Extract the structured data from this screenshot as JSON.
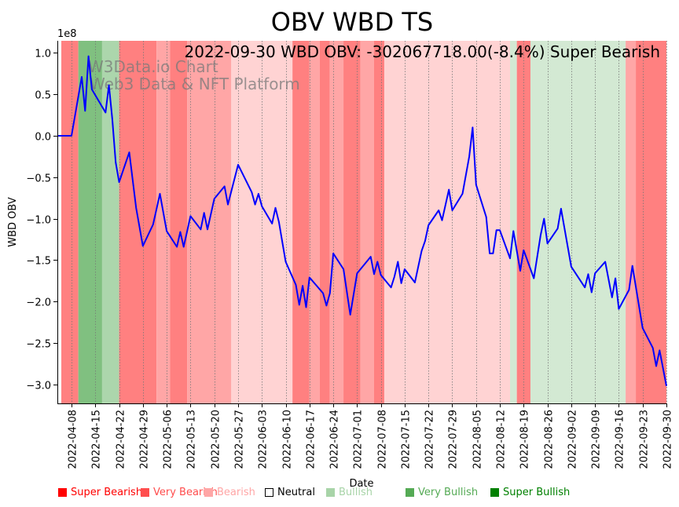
{
  "chart_data": {
    "type": "line",
    "title": "OBV WBD TS",
    "annotation": "2022-09-30 WBD OBV: -302067718.00(-8.4%) Super Bearish",
    "watermark": [
      "W3Data.io Chart",
      "Web3 Data & NFT Platform"
    ],
    "xlabel": "Date",
    "ylabel": "WBD OBV",
    "y_scale_label": "1e8",
    "y_unit_multiplier": 100000000,
    "xlim": [
      "2022-04-04",
      "2022-09-30"
    ],
    "ylim": [
      -3.23,
      1.146
    ],
    "grid": "vertical dotted at x ticks",
    "x_ticks": [
      "2022-04-08",
      "2022-04-15",
      "2022-04-22",
      "2022-04-29",
      "2022-05-06",
      "2022-05-13",
      "2022-05-20",
      "2022-05-27",
      "2022-06-03",
      "2022-06-10",
      "2022-06-17",
      "2022-06-24",
      "2022-07-01",
      "2022-07-08",
      "2022-07-15",
      "2022-07-22",
      "2022-07-29",
      "2022-08-05",
      "2022-08-12",
      "2022-08-19",
      "2022-08-26",
      "2022-09-02",
      "2022-09-09",
      "2022-09-16",
      "2022-09-23",
      "2022-09-30"
    ],
    "y_ticks": [
      1.0,
      0.5,
      0.0,
      -0.5,
      -1.0,
      -1.5,
      -2.0,
      -2.5,
      -3.0
    ],
    "y_tick_labels": [
      "1.0",
      "0.5",
      "0.0",
      "−0.5",
      "−1.0",
      "−1.5",
      "−2.0",
      "−2.5",
      "−3.0"
    ],
    "series": [
      {
        "name": "OBV",
        "color": "#0000ff",
        "points": [
          [
            "2022-04-04",
            0.0
          ],
          [
            "2022-04-08",
            0.0
          ],
          [
            "2022-04-11",
            0.71
          ],
          [
            "2022-04-12",
            0.3
          ],
          [
            "2022-04-13",
            0.96
          ],
          [
            "2022-04-14",
            0.56
          ],
          [
            "2022-04-18",
            0.28
          ],
          [
            "2022-04-19",
            0.61
          ],
          [
            "2022-04-20",
            0.2
          ],
          [
            "2022-04-21",
            -0.32
          ],
          [
            "2022-04-22",
            -0.56
          ],
          [
            "2022-04-25",
            -0.2
          ],
          [
            "2022-04-27",
            -0.87
          ],
          [
            "2022-04-29",
            -1.33
          ],
          [
            "2022-05-02",
            -1.07
          ],
          [
            "2022-05-04",
            -0.7
          ],
          [
            "2022-05-06",
            -1.15
          ],
          [
            "2022-05-09",
            -1.34
          ],
          [
            "2022-05-10",
            -1.16
          ],
          [
            "2022-05-11",
            -1.34
          ],
          [
            "2022-05-13",
            -0.97
          ],
          [
            "2022-05-16",
            -1.13
          ],
          [
            "2022-05-17",
            -0.93
          ],
          [
            "2022-05-18",
            -1.13
          ],
          [
            "2022-05-20",
            -0.76
          ],
          [
            "2022-05-23",
            -0.61
          ],
          [
            "2022-05-24",
            -0.83
          ],
          [
            "2022-05-27",
            -0.35
          ],
          [
            "2022-05-31",
            -0.68
          ],
          [
            "2022-06-01",
            -0.83
          ],
          [
            "2022-06-02",
            -0.7
          ],
          [
            "2022-06-03",
            -0.85
          ],
          [
            "2022-06-06",
            -1.06
          ],
          [
            "2022-06-07",
            -0.87
          ],
          [
            "2022-06-08",
            -1.04
          ],
          [
            "2022-06-10",
            -1.52
          ],
          [
            "2022-06-13",
            -1.8
          ],
          [
            "2022-06-14",
            -2.04
          ],
          [
            "2022-06-15",
            -1.81
          ],
          [
            "2022-06-16",
            -2.07
          ],
          [
            "2022-06-17",
            -1.71
          ],
          [
            "2022-06-21",
            -1.9
          ],
          [
            "2022-06-22",
            -2.05
          ],
          [
            "2022-06-23",
            -1.9
          ],
          [
            "2022-06-24",
            -1.42
          ],
          [
            "2022-06-27",
            -1.61
          ],
          [
            "2022-06-29",
            -2.16
          ],
          [
            "2022-07-01",
            -1.66
          ],
          [
            "2022-07-05",
            -1.46
          ],
          [
            "2022-07-06",
            -1.67
          ],
          [
            "2022-07-07",
            -1.52
          ],
          [
            "2022-07-08",
            -1.68
          ],
          [
            "2022-07-11",
            -1.83
          ],
          [
            "2022-07-12",
            -1.7
          ],
          [
            "2022-07-13",
            -1.52
          ],
          [
            "2022-07-14",
            -1.78
          ],
          [
            "2022-07-15",
            -1.61
          ],
          [
            "2022-07-18",
            -1.77
          ],
          [
            "2022-07-20",
            -1.39
          ],
          [
            "2022-07-21",
            -1.27
          ],
          [
            "2022-07-22",
            -1.08
          ],
          [
            "2022-07-25",
            -0.9
          ],
          [
            "2022-07-26",
            -1.02
          ],
          [
            "2022-07-28",
            -0.65
          ],
          [
            "2022-07-29",
            -0.9
          ],
          [
            "2022-08-01",
            -0.7
          ],
          [
            "2022-08-03",
            -0.25
          ],
          [
            "2022-08-04",
            0.1
          ],
          [
            "2022-08-05",
            -0.59
          ],
          [
            "2022-08-08",
            -0.98
          ],
          [
            "2022-08-09",
            -1.42
          ],
          [
            "2022-08-10",
            -1.42
          ],
          [
            "2022-08-11",
            -1.14
          ],
          [
            "2022-08-12",
            -1.14
          ],
          [
            "2022-08-15",
            -1.48
          ],
          [
            "2022-08-16",
            -1.15
          ],
          [
            "2022-08-18",
            -1.63
          ],
          [
            "2022-08-19",
            -1.38
          ],
          [
            "2022-08-22",
            -1.72
          ],
          [
            "2022-08-24",
            -1.2
          ],
          [
            "2022-08-25",
            -1.0
          ],
          [
            "2022-08-26",
            -1.3
          ],
          [
            "2022-08-29",
            -1.12
          ],
          [
            "2022-08-30",
            -0.88
          ],
          [
            "2022-09-02",
            -1.58
          ],
          [
            "2022-09-06",
            -1.83
          ],
          [
            "2022-09-07",
            -1.67
          ],
          [
            "2022-09-08",
            -1.89
          ],
          [
            "2022-09-09",
            -1.66
          ],
          [
            "2022-09-12",
            -1.52
          ],
          [
            "2022-09-14",
            -1.95
          ],
          [
            "2022-09-15",
            -1.72
          ],
          [
            "2022-09-16",
            -2.09
          ],
          [
            "2022-09-19",
            -1.86
          ],
          [
            "2022-09-20",
            -1.57
          ],
          [
            "2022-09-23",
            -2.32
          ],
          [
            "2022-09-26",
            -2.56
          ],
          [
            "2022-09-27",
            -2.78
          ],
          [
            "2022-09-28",
            -2.59
          ],
          [
            "2022-09-30",
            -3.02
          ]
        ]
      }
    ],
    "bands": [
      {
        "start": "2022-04-05",
        "end": "2022-04-10",
        "signal": "Super Bearish"
      },
      {
        "start": "2022-04-10",
        "end": "2022-04-17",
        "signal": "Super Bullish"
      },
      {
        "start": "2022-04-17",
        "end": "2022-04-22",
        "signal": "Very Bullish"
      },
      {
        "start": "2022-04-22",
        "end": "2022-05-03",
        "signal": "Super Bearish"
      },
      {
        "start": "2022-05-03",
        "end": "2022-05-07",
        "signal": "Very Bearish"
      },
      {
        "start": "2022-05-07",
        "end": "2022-05-12",
        "signal": "Super Bearish"
      },
      {
        "start": "2022-05-12",
        "end": "2022-05-25",
        "signal": "Very Bearish"
      },
      {
        "start": "2022-05-25",
        "end": "2022-06-12",
        "signal": "Bearish"
      },
      {
        "start": "2022-06-12",
        "end": "2022-06-17",
        "signal": "Super Bearish"
      },
      {
        "start": "2022-06-17",
        "end": "2022-06-20",
        "signal": "Very Bearish"
      },
      {
        "start": "2022-06-20",
        "end": "2022-06-23",
        "signal": "Super Bearish"
      },
      {
        "start": "2022-06-23",
        "end": "2022-06-27",
        "signal": "Very Bearish"
      },
      {
        "start": "2022-06-27",
        "end": "2022-07-02",
        "signal": "Super Bearish"
      },
      {
        "start": "2022-07-02",
        "end": "2022-07-06",
        "signal": "Very Bearish"
      },
      {
        "start": "2022-07-06",
        "end": "2022-07-09",
        "signal": "Super Bearish"
      },
      {
        "start": "2022-07-09",
        "end": "2022-08-15",
        "signal": "Bearish"
      },
      {
        "start": "2022-08-15",
        "end": "2022-08-17",
        "signal": "Bullish"
      },
      {
        "start": "2022-08-17",
        "end": "2022-08-21",
        "signal": "Super Bearish"
      },
      {
        "start": "2022-08-21",
        "end": "2022-09-18",
        "signal": "Bullish"
      },
      {
        "start": "2022-09-18",
        "end": "2022-09-21",
        "signal": "Very Bearish"
      },
      {
        "start": "2022-09-21",
        "end": "2022-09-30",
        "signal": "Super Bearish"
      }
    ],
    "band_colors": {
      "Super Bearish": "#ff8080",
      "Very Bearish": "#ffa6a6",
      "Bearish": "#ffd3d3",
      "Bullish": "#d3e9d3",
      "Very Bullish": "#acd6ac",
      "Super Bullish": "#80c080"
    },
    "legend": {
      "placement": "bottom",
      "items": [
        {
          "label": "Super Bearish",
          "color": "#ff0000"
        },
        {
          "label": "Very Bearish",
          "color": "#ff4d4d"
        },
        {
          "label": "Bearish",
          "color": "#ffa6a6"
        },
        {
          "label": "Neutral",
          "color": "#ffffff",
          "text_color": "#000000"
        },
        {
          "label": "Bullish",
          "color": "#a8d4a8"
        },
        {
          "label": "Very Bullish",
          "color": "#55aa55"
        },
        {
          "label": "Super Bullish",
          "color": "#008000"
        }
      ]
    }
  }
}
